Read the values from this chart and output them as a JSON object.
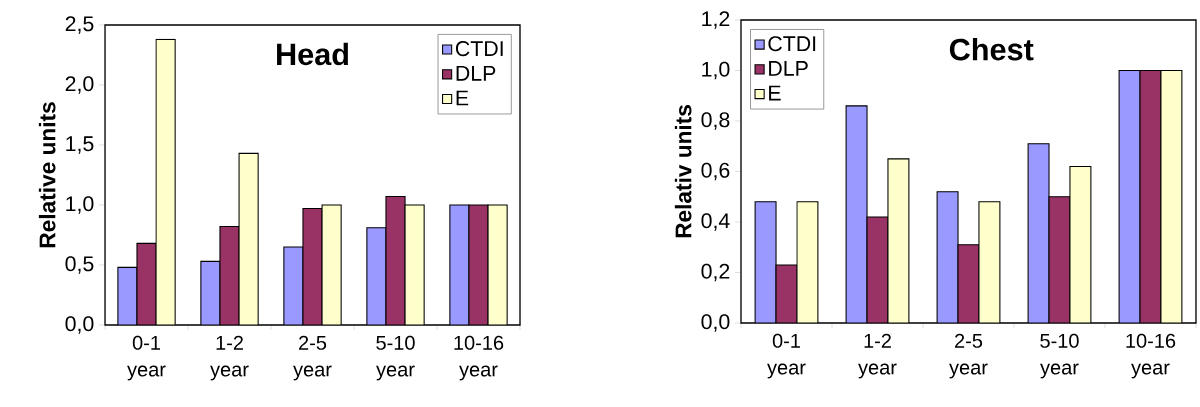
{
  "chart_data": [
    {
      "type": "bar",
      "title": "Head",
      "ylabel": "Relative units",
      "categories": [
        "0-1 year",
        "1-2 year",
        "2-5 year",
        "5-10 year",
        "10-16 year"
      ],
      "series": [
        {
          "name": "CTDI",
          "color": "#9999ff",
          "values": [
            0.48,
            0.53,
            0.65,
            0.81,
            1.0
          ]
        },
        {
          "name": "DLP",
          "color": "#993366",
          "values": [
            0.68,
            0.82,
            0.97,
            1.07,
            1.0
          ]
        },
        {
          "name": "E",
          "color": "#ffffcc",
          "values": [
            2.38,
            1.43,
            1.0,
            1.0,
            1.0
          ]
        }
      ],
      "ylim": [
        0,
        2.5
      ],
      "yticks": [
        {
          "value": 0,
          "label": "0,0"
        },
        {
          "value": 0.5,
          "label": "0,5"
        },
        {
          "value": 1.0,
          "label": "1,0"
        },
        {
          "value": 1.5,
          "label": "1,5"
        },
        {
          "value": 2.0,
          "label": "2,0"
        },
        {
          "value": 2.5,
          "label": "2,5"
        }
      ],
      "legend": "top right",
      "grid": false
    },
    {
      "type": "bar",
      "title": "Chest",
      "ylabel": "Relativ units",
      "categories": [
        "0-1 year",
        "1-2 year",
        "2-5 year",
        "5-10 year",
        "10-16 year"
      ],
      "series": [
        {
          "name": "CTDI",
          "color": "#9999ff",
          "values": [
            0.48,
            0.86,
            0.52,
            0.71,
            1.0
          ]
        },
        {
          "name": "DLP",
          "color": "#993366",
          "values": [
            0.23,
            0.42,
            0.31,
            0.5,
            1.0
          ]
        },
        {
          "name": "E",
          "color": "#ffffcc",
          "values": [
            0.48,
            0.65,
            0.48,
            0.62,
            1.0
          ]
        }
      ],
      "ylim": [
        0,
        1.2
      ],
      "yticks": [
        {
          "value": 0,
          "label": "0,0"
        },
        {
          "value": 0.2,
          "label": "0,2"
        },
        {
          "value": 0.4,
          "label": "0,4"
        },
        {
          "value": 0.6,
          "label": "0,6"
        },
        {
          "value": 0.8,
          "label": "0,8"
        },
        {
          "value": 1.0,
          "label": "1,0"
        },
        {
          "value": 1.2,
          "label": "1,2"
        }
      ],
      "legend": "top left",
      "grid": false
    }
  ]
}
